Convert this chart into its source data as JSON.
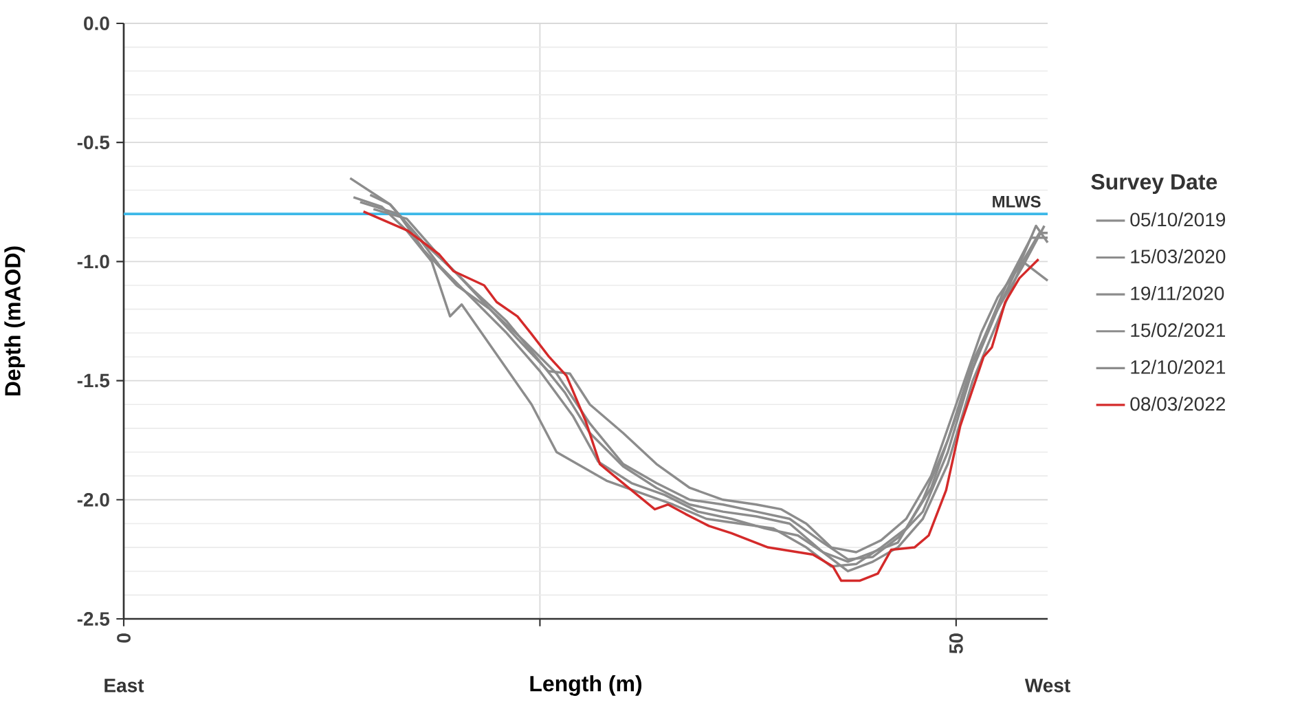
{
  "chart_data": {
    "type": "line",
    "xlabel": "Length (m)",
    "ylabel": "Depth (mAOD)",
    "legend_title": "Survey Date",
    "legend": "right",
    "grid": true,
    "xlim": [
      0,
      55.5
    ],
    "xticks": [
      0,
      {
        "value": 25,
        "label": null
      },
      50
    ],
    "ylim": [
      -2.5,
      0
    ],
    "yticks": [
      {
        "value": -2.5,
        "label": "-2.5"
      },
      {
        "value": -2,
        "label": "-2.0"
      },
      {
        "value": -1.5,
        "label": "-1.5"
      },
      {
        "value": -1,
        "label": "-1.0"
      },
      {
        "value": -0.5,
        "label": "-0.5"
      },
      {
        "value": 0,
        "label": "0.0"
      }
    ],
    "ref_lines": [
      {
        "axis": "y",
        "value": -0.8,
        "label": "MLWS",
        "color": "#3cb8e8"
      }
    ],
    "annotations": [
      "East",
      "West"
    ],
    "series": [
      {
        "name": "05/10/2019",
        "color": "#8c8c8c",
        "x": [
          13.6,
          16,
          18,
          20,
          22,
          24,
          26,
          28,
          30,
          32,
          34,
          36,
          38,
          40,
          42,
          43.5,
          45,
          46.5,
          48,
          49.5,
          51,
          52.5,
          54,
          54.8,
          55.5
        ],
        "values": [
          -0.65,
          -0.76,
          -0.92,
          -1.05,
          -1.2,
          -1.33,
          -1.47,
          -1.68,
          -1.85,
          -1.93,
          -2.0,
          -2.02,
          -2.05,
          -2.08,
          -2.18,
          -2.25,
          -2.24,
          -2.16,
          -2.05,
          -1.8,
          -1.45,
          -1.2,
          -0.98,
          -0.85,
          -0.92
        ]
      },
      {
        "name": "15/03/2020",
        "color": "#8c8c8c",
        "x": [
          13.8,
          15.5,
          17,
          18.5,
          19.6,
          20.3,
          21.5,
          23,
          24.5,
          26,
          27.5,
          29,
          31,
          33,
          35,
          37,
          39,
          41,
          42.5,
          44,
          45.5,
          47,
          48.5,
          50,
          51.5,
          53,
          54.5,
          55.5
        ],
        "values": [
          -0.73,
          -0.77,
          -0.87,
          -1.0,
          -1.23,
          -1.18,
          -1.3,
          -1.45,
          -1.6,
          -1.8,
          -1.86,
          -1.92,
          -1.97,
          -2.02,
          -2.08,
          -2.1,
          -2.12,
          -2.2,
          -2.28,
          -2.27,
          -2.2,
          -2.12,
          -1.95,
          -1.65,
          -1.35,
          -1.1,
          -0.9,
          -0.9
        ]
      },
      {
        "name": "19/11/2020",
        "color": "#8c8c8c",
        "x": [
          14.2,
          16.5,
          18,
          20,
          22,
          24,
          25.5,
          26.8,
          28,
          30,
          32,
          34,
          36,
          38,
          39.5,
          41,
          42.5,
          44,
          45.5,
          47,
          48.5,
          50,
          51.5,
          52.5,
          54,
          55.5
        ],
        "values": [
          -0.75,
          -0.8,
          -0.95,
          -1.1,
          -1.2,
          -1.35,
          -1.46,
          -1.47,
          -1.6,
          -1.72,
          -1.85,
          -1.95,
          -2.0,
          -2.02,
          -2.04,
          -2.1,
          -2.2,
          -2.22,
          -2.17,
          -2.08,
          -1.9,
          -1.6,
          -1.3,
          -1.15,
          -1.0,
          -1.08
        ]
      },
      {
        "name": "15/02/2021",
        "color": "#8c8c8c",
        "x": [
          15,
          17,
          19,
          21,
          23,
          25,
          26.5,
          28,
          30,
          32,
          34,
          36,
          38,
          40,
          42,
          43.5,
          45,
          46.5,
          48,
          49.5,
          51,
          52.5,
          54,
          55,
          55.5
        ],
        "values": [
          -0.78,
          -0.82,
          -0.98,
          -1.12,
          -1.25,
          -1.42,
          -1.55,
          -1.72,
          -1.86,
          -1.95,
          -2.02,
          -2.05,
          -2.07,
          -2.1,
          -2.22,
          -2.3,
          -2.26,
          -2.2,
          -2.08,
          -1.85,
          -1.5,
          -1.25,
          -1.0,
          -0.88,
          -0.88
        ]
      },
      {
        "name": "12/10/2021",
        "color": "#8c8c8c",
        "x": [
          14.8,
          16,
          17.5,
          19,
          21,
          23,
          25,
          27,
          28.5,
          30.5,
          32.5,
          34.5,
          36.5,
          38.5,
          40.5,
          42,
          43.5,
          45,
          46.5,
          48,
          49.5,
          51,
          52.5,
          54,
          55.3
        ],
        "values": [
          -0.72,
          -0.76,
          -0.88,
          -1.02,
          -1.16,
          -1.3,
          -1.46,
          -1.65,
          -1.84,
          -1.93,
          -1.98,
          -2.05,
          -2.08,
          -2.12,
          -2.15,
          -2.22,
          -2.26,
          -2.22,
          -2.18,
          -2.0,
          -1.75,
          -1.42,
          -1.2,
          -1.02,
          -0.85
        ]
      },
      {
        "name": "08/03/2022",
        "color": "#d42a2a",
        "x": [
          14.4,
          17.05,
          18.95,
          19.8,
          21.65,
          22.4,
          23.65,
          24.45,
          25.55,
          26.6,
          27.75,
          28.6,
          30.5,
          31.9,
          32.7,
          33.75,
          35.15,
          36.5,
          38.7,
          41.4,
          42.6,
          43.1,
          44.2,
          45.3,
          46.1,
          47.5,
          48.35,
          49.4,
          50.25,
          51.65,
          52.15,
          52.95,
          53.8,
          54.95
        ],
        "values": [
          -0.79,
          -0.87,
          -0.97,
          -1.04,
          -1.1,
          -1.17,
          -1.23,
          -1.3,
          -1.4,
          -1.48,
          -1.67,
          -1.85,
          -1.96,
          -2.04,
          -2.02,
          -2.06,
          -2.11,
          -2.14,
          -2.2,
          -2.23,
          -2.28,
          -2.34,
          -2.34,
          -2.31,
          -2.21,
          -2.2,
          -2.15,
          -1.96,
          -1.69,
          -1.4,
          -1.36,
          -1.17,
          -1.07,
          -0.99
        ]
      }
    ]
  }
}
